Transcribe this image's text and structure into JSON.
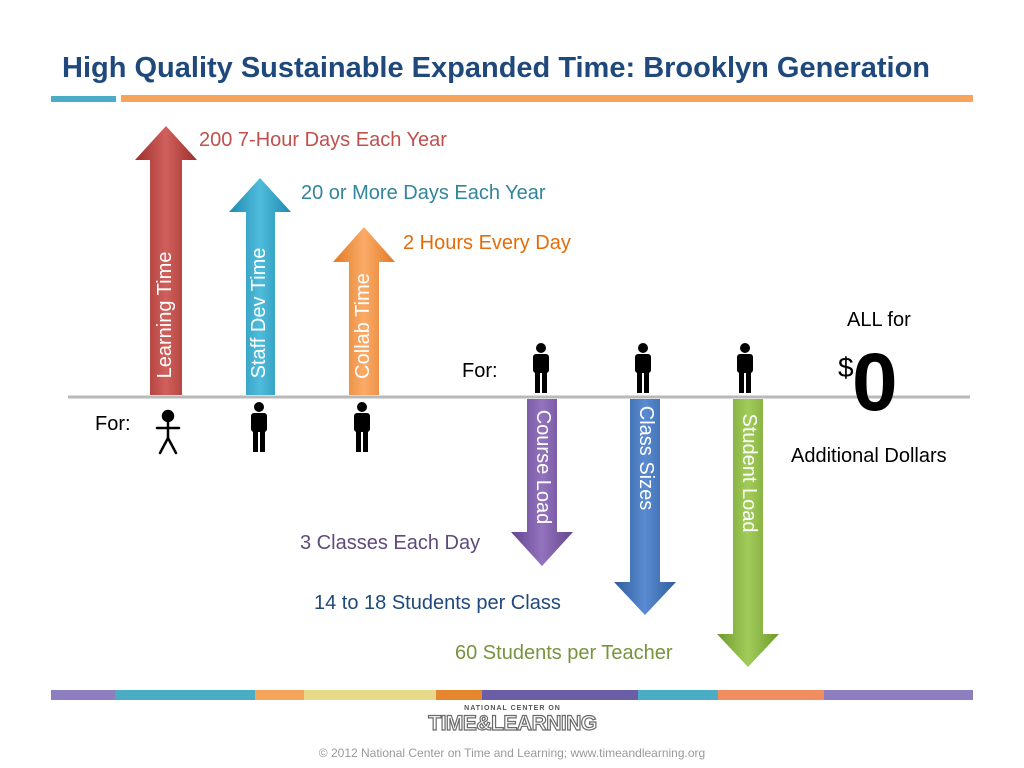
{
  "title": "High Quality Sustainable Expanded Time: Brooklyn Generation",
  "colors": {
    "title": "#1f497d",
    "learning": "#c0504d",
    "staff": "#31a0c4",
    "collab": "#f79646",
    "course": "#7f5fa9",
    "class": "#4475bc",
    "student": "#8cb840"
  },
  "up_arrows": [
    {
      "label": "Learning Time",
      "caption": "200 7-Hour Days Each Year"
    },
    {
      "label": "Staff Dev Time",
      "caption": "20 or More Days Each Year"
    },
    {
      "label": "Collab Time",
      "caption": "2 Hours Every Day"
    }
  ],
  "down_arrows": [
    {
      "label": "Course Load",
      "caption": "3 Classes Each Day"
    },
    {
      "label": "Class Sizes",
      "caption": "14 to 18 Students per Class"
    },
    {
      "label": "Student Load",
      "caption": "60 Students per Teacher"
    }
  ],
  "for_left": "For:",
  "for_right": "For:",
  "summary": {
    "all_for": "ALL for",
    "currency": "$",
    "amount": "0",
    "additional": "Additional Dollars"
  },
  "logo": {
    "line1": "NATIONAL CENTER ON",
    "line2": "TIME&LEARNING"
  },
  "footer": "© 2012 National Center on Time and Learning; www.timeandlearning.org"
}
